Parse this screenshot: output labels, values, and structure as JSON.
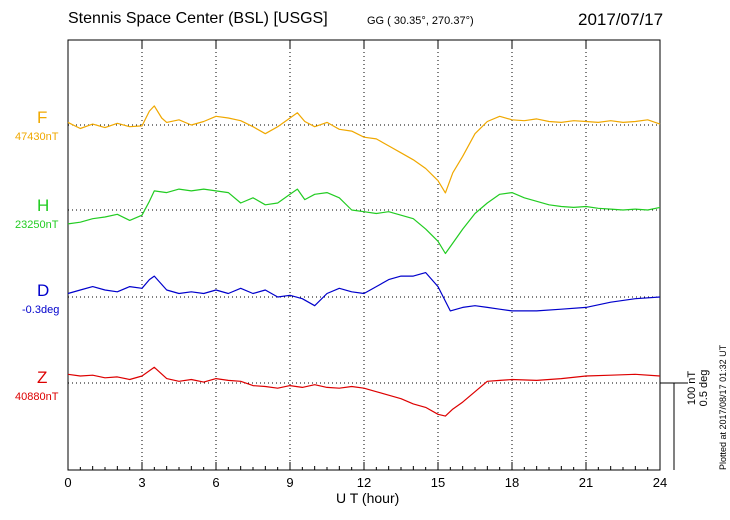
{
  "header": {
    "title": "Stennis Space Center (BSL)  [USGS]",
    "coords": "GG ( 30.35°, 270.37°)",
    "date": "2017/07/17"
  },
  "footer": {
    "plotted": "Plotted at 2017/08/17 01:32 UT"
  },
  "scale_bar": {
    "nt": "100 nT",
    "deg": "0.5 deg"
  },
  "colors": {
    "F": "#f0a800",
    "H": "#22cc22",
    "D": "#0000cc",
    "Z": "#dd0000",
    "grid": "#000000"
  },
  "chart_data": {
    "type": "line",
    "xlabel": "U T (hour)",
    "xlim": [
      0,
      24
    ],
    "x_ticks": [
      "0",
      "3",
      "6",
      "9",
      "12",
      "15",
      "18",
      "21",
      "24"
    ],
    "grid": true,
    "series": [
      {
        "name": "F",
        "baseline": "47430nT",
        "unit": "nT",
        "x": [
          0,
          0.5,
          1,
          1.5,
          2,
          2.5,
          3,
          3.3,
          3.5,
          3.8,
          4,
          4.5,
          5,
          5.5,
          6,
          6.5,
          7,
          7.5,
          8,
          8.5,
          9,
          9.3,
          9.6,
          10,
          10.5,
          11,
          11.5,
          12,
          12.5,
          13,
          13.5,
          14,
          14.5,
          15,
          15.3,
          15.6,
          16,
          16.5,
          17,
          17.5,
          18,
          18.5,
          19,
          19.5,
          20,
          20.5,
          21,
          21.5,
          22,
          22.5,
          23,
          23.5,
          24
        ],
        "values": [
          3,
          -4,
          1,
          -3,
          2,
          -2,
          -1,
          16,
          22,
          8,
          3,
          6,
          0,
          4,
          10,
          8,
          5,
          -2,
          -10,
          -2,
          8,
          14,
          4,
          -2,
          3,
          -5,
          -7,
          -14,
          -16,
          -24,
          -32,
          -40,
          -50,
          -64,
          -78,
          -55,
          -36,
          -10,
          4,
          10,
          6,
          5,
          7,
          4,
          3,
          5,
          4,
          3,
          5,
          3,
          4,
          6,
          1
        ]
      },
      {
        "name": "H",
        "baseline": "23250nT",
        "unit": "nT",
        "x": [
          0,
          0.5,
          1,
          1.5,
          2,
          2.5,
          3,
          3.3,
          3.5,
          4,
          4.5,
          5,
          5.5,
          6,
          6.5,
          7,
          7.5,
          8,
          8.5,
          9,
          9.3,
          9.6,
          10,
          10.5,
          11,
          11.5,
          12,
          12.5,
          13,
          13.5,
          14,
          14.5,
          15,
          15.3,
          15.6,
          16,
          16.5,
          17,
          17.5,
          18,
          18.5,
          19,
          19.5,
          20,
          20.5,
          21,
          21.5,
          22,
          22.5,
          23,
          23.5,
          24
        ],
        "values": [
          -16,
          -14,
          -10,
          -8,
          -5,
          -12,
          -6,
          10,
          22,
          20,
          24,
          22,
          24,
          22,
          20,
          8,
          14,
          6,
          8,
          18,
          24,
          12,
          18,
          20,
          14,
          0,
          -2,
          -4,
          -2,
          -6,
          -10,
          -22,
          -36,
          -50,
          -38,
          -22,
          -4,
          8,
          18,
          20,
          14,
          10,
          6,
          4,
          3,
          4,
          2,
          1,
          0,
          1,
          0,
          3
        ]
      },
      {
        "name": "D",
        "baseline": "-0.3deg",
        "unit": "deg",
        "x": [
          0,
          0.5,
          1,
          1.5,
          2,
          2.5,
          3,
          3.3,
          3.5,
          4,
          4.5,
          5,
          5.5,
          6,
          6.5,
          7,
          7.5,
          8,
          8.5,
          9,
          9.5,
          10,
          10.5,
          11,
          11.5,
          12,
          12.5,
          13,
          13.5,
          14,
          14.5,
          15,
          15.5,
          16,
          16.5,
          17,
          17.5,
          18,
          19,
          20,
          21,
          22,
          23,
          24
        ],
        "values": [
          0.02,
          0.04,
          0.06,
          0.04,
          0.03,
          0.06,
          0.05,
          0.1,
          0.12,
          0.04,
          0.02,
          0.03,
          0.02,
          0.04,
          0.02,
          0.05,
          0.02,
          0.04,
          0.0,
          0.01,
          -0.01,
          -0.05,
          0.02,
          0.05,
          0.03,
          0.02,
          0.06,
          0.1,
          0.12,
          0.12,
          0.14,
          0.06,
          -0.08,
          -0.06,
          -0.05,
          -0.06,
          -0.07,
          -0.08,
          -0.08,
          -0.07,
          -0.06,
          -0.03,
          -0.01,
          0.0
        ]
      },
      {
        "name": "Z",
        "baseline": "40880nT",
        "unit": "nT",
        "x": [
          0,
          0.5,
          1,
          1.5,
          2,
          2.5,
          3,
          3.3,
          3.5,
          4,
          4.5,
          5,
          5.5,
          6,
          6.5,
          7,
          7.5,
          8,
          8.5,
          9,
          9.5,
          10,
          10.5,
          11,
          11.5,
          12,
          12.5,
          13,
          13.5,
          14,
          14.5,
          15,
          15.3,
          15.6,
          16,
          16.5,
          17,
          17.5,
          18,
          19,
          20,
          21,
          22,
          23,
          24
        ],
        "values": [
          10,
          8,
          9,
          6,
          7,
          4,
          8,
          14,
          18,
          5,
          2,
          4,
          1,
          5,
          3,
          2,
          -3,
          -4,
          -6,
          -3,
          -5,
          -2,
          -5,
          -6,
          -4,
          -6,
          -10,
          -14,
          -18,
          -24,
          -28,
          -36,
          -38,
          -30,
          -22,
          -10,
          2,
          3,
          4,
          3,
          5,
          8,
          9,
          10,
          8
        ]
      }
    ]
  }
}
